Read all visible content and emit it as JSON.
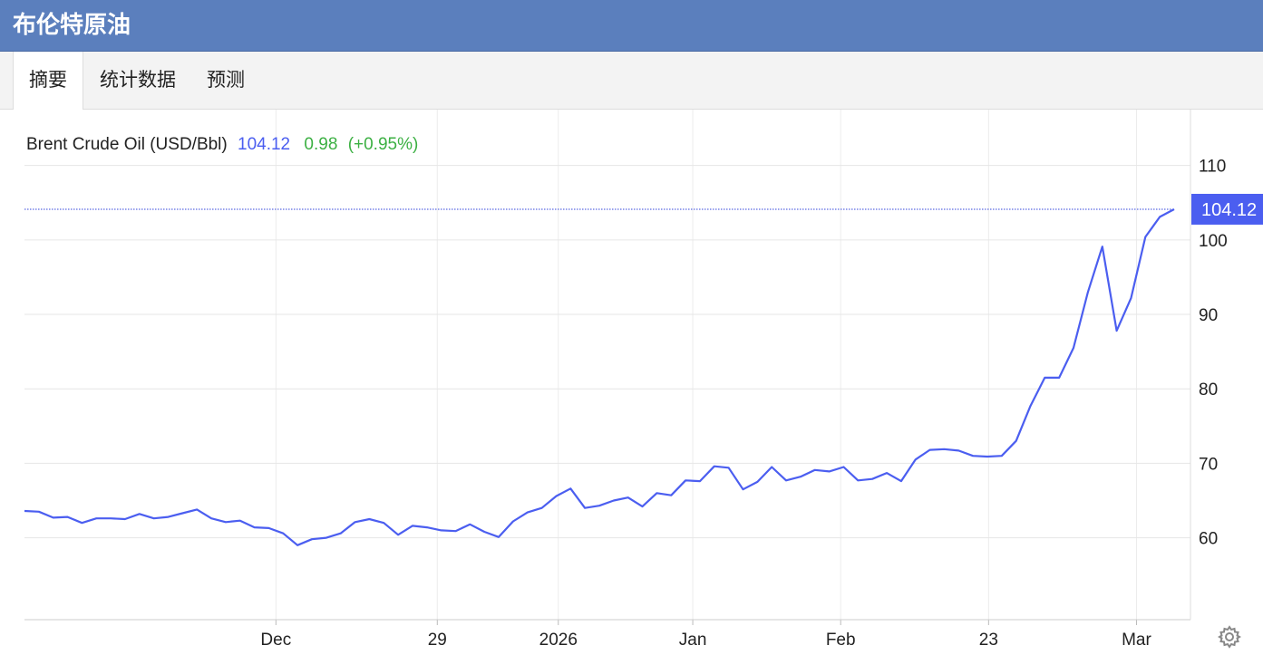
{
  "header": {
    "title": "布伦特原油"
  },
  "tabs": [
    {
      "label": "摘要",
      "active": true
    },
    {
      "label": "统计数据",
      "active": false
    },
    {
      "label": "预测",
      "active": false
    }
  ],
  "legend": {
    "name": "Brent Crude Oil (USD/Bbl)",
    "price": "104.12",
    "change": "0.98",
    "change_pct": "(+0.95%)"
  },
  "colors": {
    "header_bg": "#5b7fbd",
    "line": "#4b5ef0",
    "change_positive": "#3cb043",
    "grid": "#e6e6e6"
  },
  "icons": {
    "settings": "gear-icon"
  },
  "chart_data": {
    "type": "line",
    "title": "Brent Crude Oil (USD/Bbl)",
    "xlabel": "",
    "ylabel": "",
    "ylim": [
      49,
      117.5
    ],
    "yticks": [
      60,
      70,
      80,
      90,
      100,
      110
    ],
    "ytick_labels": [
      "60",
      "70",
      "80",
      "90",
      "100",
      "110"
    ],
    "x_labels": [
      "Dec",
      "29",
      "2026",
      "Jan",
      "Feb",
      "23",
      "Mar"
    ],
    "last_value_label": "104.12",
    "grid": true,
    "series": [
      {
        "name": "Brent Crude Oil (USD/Bbl)",
        "values": [
          63.6,
          63.5,
          62.7,
          62.8,
          62.0,
          62.6,
          62.6,
          62.5,
          63.2,
          62.6,
          62.8,
          63.3,
          63.8,
          62.6,
          62.1,
          62.3,
          61.4,
          61.3,
          60.6,
          59.0,
          59.8,
          60.0,
          60.6,
          62.1,
          62.5,
          62.0,
          60.4,
          61.6,
          61.4,
          61.0,
          60.9,
          61.8,
          60.8,
          60.1,
          62.2,
          63.4,
          64.0,
          65.6,
          66.6,
          64.0,
          64.3,
          65.0,
          65.4,
          64.2,
          66.0,
          65.7,
          67.7,
          67.6,
          69.6,
          69.4,
          66.5,
          67.5,
          69.5,
          67.7,
          68.2,
          69.1,
          68.9,
          69.5,
          67.7,
          67.9,
          68.7,
          67.6,
          70.5,
          71.8,
          71.9,
          71.7,
          71.0,
          70.9,
          71.0,
          73.0,
          77.7,
          81.5,
          81.5,
          85.5,
          93.0,
          99.1,
          87.8,
          92.2,
          100.4,
          103.1,
          104.12
        ]
      }
    ]
  }
}
